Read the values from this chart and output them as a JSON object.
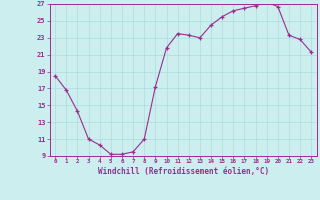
{
  "x": [
    0,
    1,
    2,
    3,
    4,
    5,
    6,
    7,
    8,
    9,
    10,
    11,
    12,
    13,
    14,
    15,
    16,
    17,
    18,
    19,
    20,
    21,
    22,
    23
  ],
  "y": [
    18.5,
    16.8,
    14.3,
    11.0,
    10.3,
    9.2,
    9.2,
    9.5,
    11.0,
    17.2,
    21.8,
    23.5,
    23.3,
    23.0,
    24.5,
    25.5,
    26.2,
    26.5,
    26.8,
    27.2,
    26.7,
    23.3,
    22.8,
    21.3
  ],
  "ylim": [
    9,
    27
  ],
  "yticks": [
    9,
    11,
    13,
    15,
    17,
    19,
    21,
    23,
    25,
    27
  ],
  "xticks": [
    0,
    1,
    2,
    3,
    4,
    5,
    6,
    7,
    8,
    9,
    10,
    11,
    12,
    13,
    14,
    15,
    16,
    17,
    18,
    19,
    20,
    21,
    22,
    23
  ],
  "line_color": "#9b2d8e",
  "marker": "+",
  "bg_color": "#cceeee",
  "grid_color": "#aadddd",
  "xlabel": "Windchill (Refroidissement éolien,°C)",
  "xlabel_color": "#9b2d8e",
  "tick_color": "#9b2d8e",
  "spine_color": "#9b2d8e"
}
